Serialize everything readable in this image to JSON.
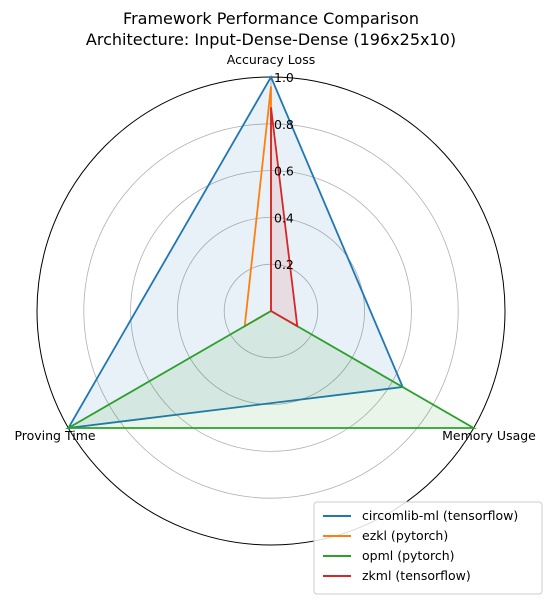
{
  "chart_data": {
    "type": "radar",
    "title_lines": [
      "Framework Performance Comparison",
      "Architecture: Input-Dense-Dense (196x25x10)"
    ],
    "axes": [
      "Accuracy Loss",
      "Memory Usage",
      "Proving Time"
    ],
    "rlim": [
      0,
      1.0
    ],
    "rticks": [
      "0.2",
      "0.4",
      "0.6",
      "0.8",
      "1.0"
    ],
    "rtick_values": [
      0.2,
      0.4,
      0.6,
      0.8,
      1.0
    ],
    "legend_position": "lower-right",
    "series": [
      {
        "name": "circomlib-ml (tensorflow)",
        "color": "#1f77b4",
        "values": [
          1.0,
          0.65,
          1.0
        ],
        "fill": true
      },
      {
        "name": "ezkl (pytorch)",
        "color": "#ff7f0e",
        "values": [
          0.96,
          0.0,
          0.13
        ],
        "fill": false
      },
      {
        "name": "opml (pytorch)",
        "color": "#2ca02c",
        "values": [
          0.0,
          1.0,
          1.0
        ],
        "fill": true
      },
      {
        "name": "zkml (tensorflow)",
        "color": "#d62728",
        "values": [
          0.87,
          0.13,
          0.0
        ],
        "fill": true
      }
    ]
  }
}
